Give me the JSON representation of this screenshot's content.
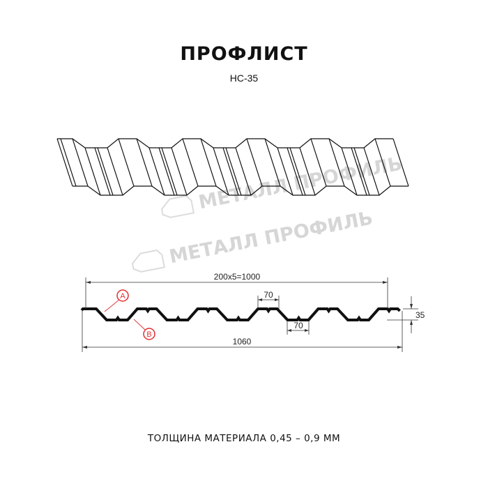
{
  "header": {
    "title": "ПРОФЛИСТ",
    "subtitle": "НС-35"
  },
  "watermark": {
    "text": "МЕТАЛЛ ПРОФИЛЬ"
  },
  "drawing": {
    "dimensions": {
      "pitch_total": "200x5=1000",
      "full_width": "1060",
      "height": "35",
      "top_flange": "70",
      "bottom_flange": "70"
    },
    "markers": [
      {
        "label": "A"
      },
      {
        "label": "B"
      }
    ]
  },
  "colors": {
    "line": "#111111",
    "marker": "#e03030",
    "dimension": "#333333",
    "watermark": "#d6d6d6"
  },
  "footer": {
    "thickness": "ТОЛЩИНА МАТЕРИАЛА 0,45 – 0,9 ММ"
  }
}
